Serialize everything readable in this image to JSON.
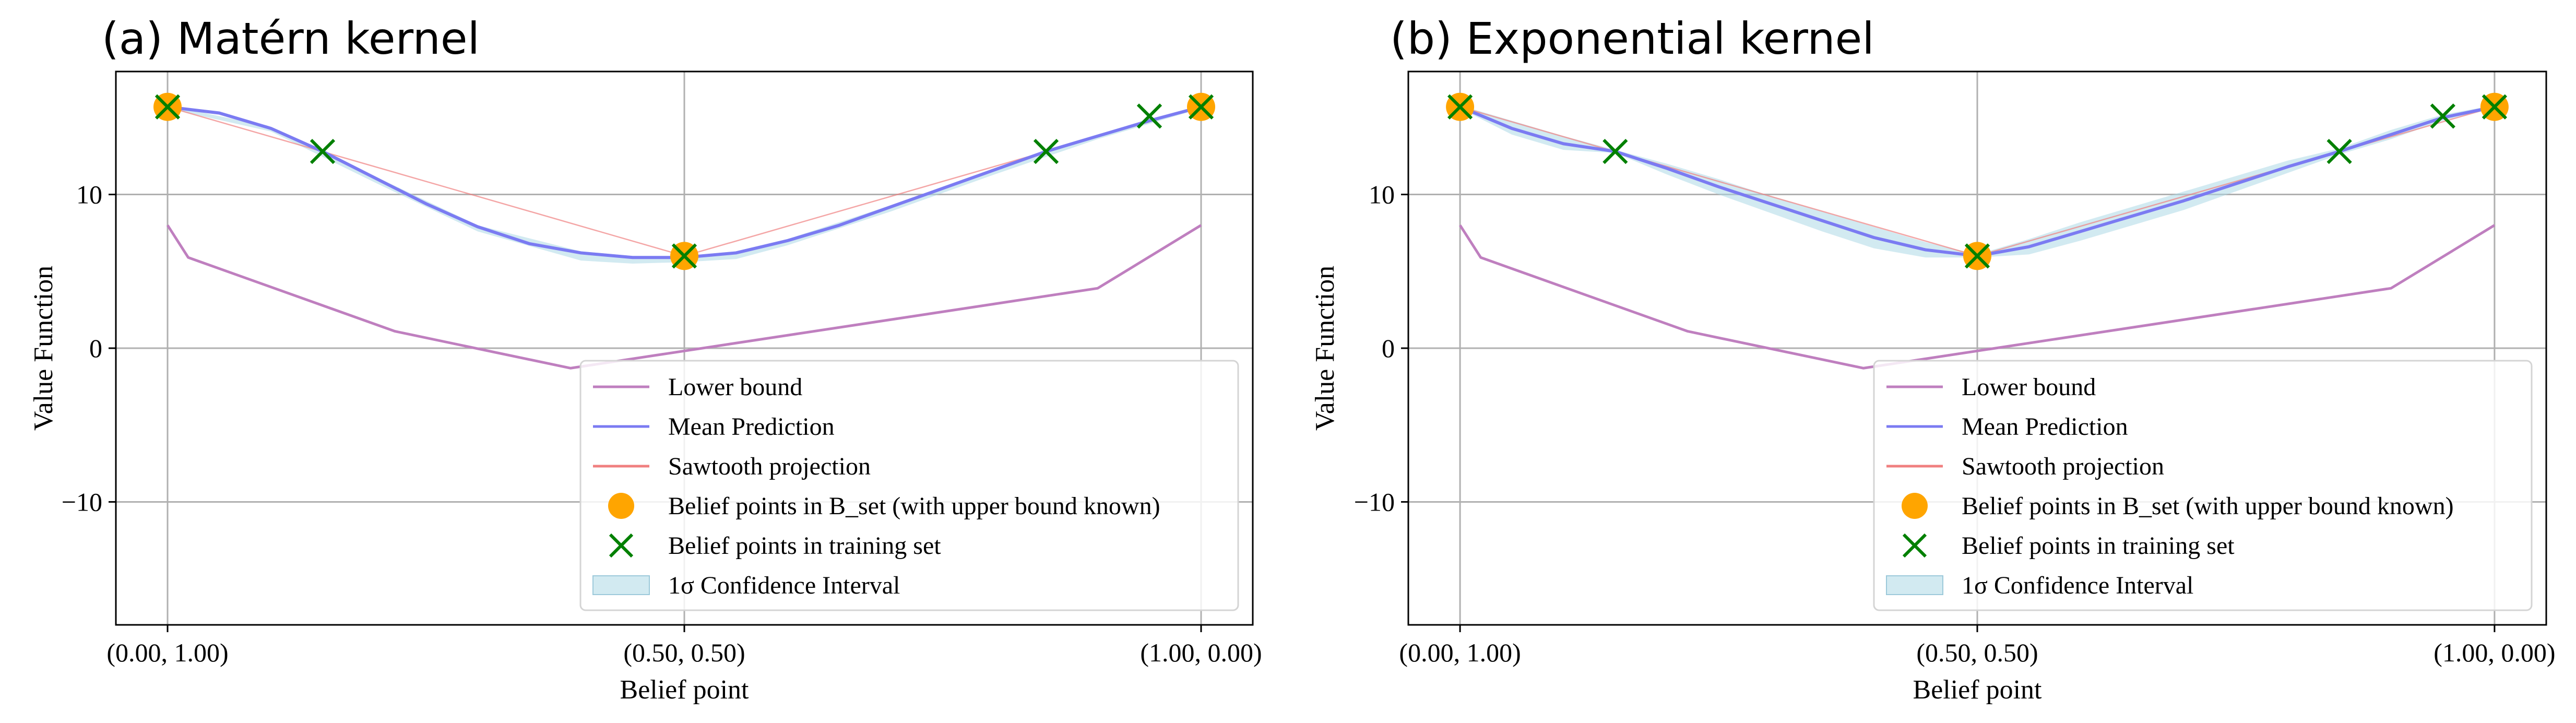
{
  "chart_data": [
    {
      "type": "line",
      "title": "(a) Matérn kernel",
      "xlabel": "Belief point",
      "ylabel": "Value Function",
      "xlim": [
        -0.05,
        1.05
      ],
      "ylim": [
        -18,
        18
      ],
      "x_ticks": [
        0.0,
        0.5,
        1.0
      ],
      "x_tick_labels": [
        "(0.00, 1.00)",
        "(0.50, 0.50)",
        "(1.00, 0.00)"
      ],
      "y_ticks": [
        -10,
        0,
        10
      ],
      "y_tick_labels": [
        "−10",
        "0",
        "10"
      ],
      "grid": true,
      "legend_position": "lower-right",
      "series": [
        {
          "name": "Lower bound",
          "color": "#bf7fbf",
          "x": [
            0.0,
            0.02,
            0.22,
            0.39,
            0.9,
            1.0
          ],
          "y": [
            8.0,
            5.9,
            1.1,
            -1.3,
            3.9,
            8.0
          ]
        },
        {
          "name": "Mean Prediction",
          "color": "#7b7bf2",
          "x": [
            0.0,
            0.05,
            0.1,
            0.15,
            0.2,
            0.25,
            0.3,
            0.35,
            0.4,
            0.45,
            0.5,
            0.55,
            0.6,
            0.65,
            0.7,
            0.75,
            0.8,
            0.85,
            0.9,
            0.95,
            1.0
          ],
          "y": [
            15.7,
            15.3,
            14.3,
            12.8,
            11.1,
            9.4,
            7.9,
            6.8,
            6.2,
            5.9,
            5.9,
            6.2,
            7.0,
            8.0,
            9.2,
            10.4,
            11.6,
            12.8,
            13.8,
            14.8,
            15.7
          ]
        },
        {
          "name": "Sawtooth projection",
          "color": "#f08080",
          "x": [
            0.0,
            0.5,
            1.0
          ],
          "y": [
            15.7,
            6.0,
            15.7
          ]
        },
        {
          "name": "1σ Confidence Interval",
          "color": "#add8e6",
          "x": [
            0.0,
            0.1,
            0.2,
            0.3,
            0.4,
            0.45,
            0.5,
            0.55,
            0.6,
            0.7,
            0.8,
            0.9,
            1.0
          ],
          "upper": [
            15.8,
            14.4,
            11.2,
            8.0,
            6.3,
            6.0,
            6.0,
            6.3,
            7.1,
            9.3,
            11.7,
            13.9,
            15.8
          ],
          "lower": [
            15.6,
            14.1,
            10.8,
            7.6,
            5.7,
            5.5,
            5.6,
            5.8,
            6.7,
            8.9,
            11.3,
            13.6,
            15.6
          ]
        },
        {
          "name": "Belief points in B_set (with upper bound known)",
          "marker": "circle",
          "color": "#ffa500",
          "x": [
            0.0,
            0.5,
            1.0
          ],
          "y": [
            15.7,
            6.0,
            15.7
          ]
        },
        {
          "name": "Belief points in training set",
          "marker": "x",
          "color": "#008000",
          "x": [
            0.0,
            0.15,
            0.5,
            0.85,
            0.95,
            1.0
          ],
          "y": [
            15.7,
            12.8,
            6.0,
            12.8,
            15.1,
            15.7
          ]
        }
      ]
    },
    {
      "type": "line",
      "title": "(b) Exponential kernel",
      "xlabel": "Belief point",
      "ylabel": "Value Function",
      "xlim": [
        -0.05,
        1.05
      ],
      "ylim": [
        -18,
        18
      ],
      "x_ticks": [
        0.0,
        0.5,
        1.0
      ],
      "x_tick_labels": [
        "(0.00, 1.00)",
        "(0.50, 0.50)",
        "(1.00, 0.00)"
      ],
      "y_ticks": [
        -10,
        0,
        10
      ],
      "y_tick_labels": [
        "−10",
        "0",
        "10"
      ],
      "grid": true,
      "legend_position": "lower-right",
      "series": [
        {
          "name": "Lower bound",
          "color": "#bf7fbf",
          "x": [
            0.0,
            0.02,
            0.22,
            0.39,
            0.9,
            1.0
          ],
          "y": [
            8.0,
            5.9,
            1.1,
            -1.3,
            3.9,
            8.0
          ]
        },
        {
          "name": "Mean Prediction",
          "color": "#7b7bf2",
          "x": [
            0.0,
            0.05,
            0.1,
            0.15,
            0.2,
            0.25,
            0.3,
            0.35,
            0.4,
            0.45,
            0.5,
            0.55,
            0.6,
            0.65,
            0.7,
            0.75,
            0.8,
            0.85,
            0.9,
            0.95,
            1.0
          ],
          "y": [
            15.7,
            14.3,
            13.3,
            12.8,
            11.7,
            10.5,
            9.4,
            8.3,
            7.2,
            6.4,
            6.0,
            6.6,
            7.6,
            8.6,
            9.6,
            10.7,
            11.8,
            12.8,
            13.9,
            15.0,
            15.7
          ]
        },
        {
          "name": "Sawtooth projection",
          "color": "#f08080",
          "x": [
            0.0,
            0.5,
            1.0
          ],
          "y": [
            15.7,
            6.0,
            15.7
          ]
        },
        {
          "name": "1σ Confidence Interval",
          "color": "#add8e6",
          "x": [
            0.0,
            0.05,
            0.1,
            0.15,
            0.2,
            0.25,
            0.3,
            0.35,
            0.4,
            0.45,
            0.5,
            0.55,
            0.6,
            0.65,
            0.7,
            0.75,
            0.8,
            0.85,
            0.9,
            0.95,
            1.0
          ],
          "upper": [
            15.8,
            14.8,
            13.8,
            12.9,
            12.0,
            11.0,
            9.9,
            8.9,
            7.9,
            6.9,
            6.1,
            7.1,
            8.2,
            9.2,
            10.2,
            11.2,
            12.2,
            13.0,
            14.2,
            15.2,
            15.8
          ],
          "lower": [
            15.6,
            13.9,
            12.9,
            12.7,
            11.3,
            10.0,
            8.8,
            7.6,
            6.5,
            5.9,
            5.9,
            6.1,
            7.0,
            8.0,
            9.0,
            10.2,
            11.4,
            12.6,
            13.6,
            14.8,
            15.6
          ]
        },
        {
          "name": "Belief points in B_set (with upper bound known)",
          "marker": "circle",
          "color": "#ffa500",
          "x": [
            0.0,
            0.5,
            1.0
          ],
          "y": [
            15.7,
            6.0,
            15.7
          ]
        },
        {
          "name": "Belief points in training set",
          "marker": "x",
          "color": "#008000",
          "x": [
            0.0,
            0.15,
            0.5,
            0.85,
            0.95,
            1.0
          ],
          "y": [
            15.7,
            12.8,
            6.0,
            12.8,
            15.1,
            15.7
          ]
        }
      ]
    }
  ]
}
